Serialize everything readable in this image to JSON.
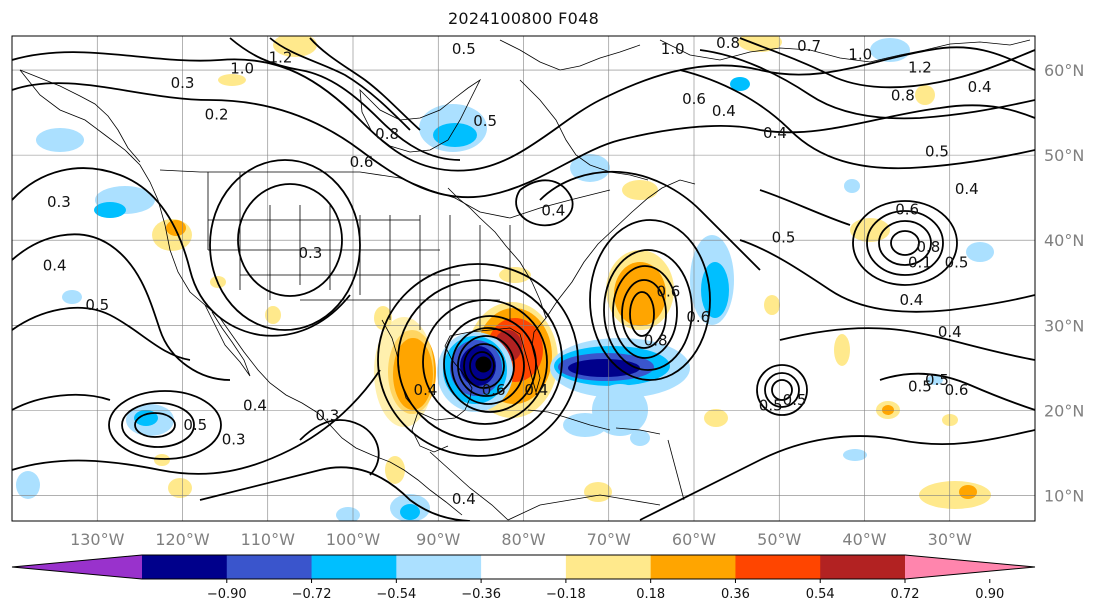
{
  "title": "2024100800 F048",
  "map": {
    "lon_range": [
      -140,
      -20
    ],
    "lat_range": [
      7,
      64
    ],
    "lon_ticks": [
      {
        "lon": -130,
        "label": "130°W"
      },
      {
        "lon": -120,
        "label": "120°W"
      },
      {
        "lon": -110,
        "label": "110°W"
      },
      {
        "lon": -100,
        "label": "100°W"
      },
      {
        "lon": -90,
        "label": "90°W"
      },
      {
        "lon": -80,
        "label": "80°W"
      },
      {
        "lon": -70,
        "label": "70°W"
      },
      {
        "lon": -60,
        "label": "60°W"
      },
      {
        "lon": -50,
        "label": "50°W"
      },
      {
        "lon": -40,
        "label": "40°W"
      },
      {
        "lon": -30,
        "label": "30°W"
      }
    ],
    "lat_ticks": [
      {
        "lat": 60,
        "label": "60°N"
      },
      {
        "lat": 50,
        "label": "50°N"
      },
      {
        "lat": 40,
        "label": "40°N"
      },
      {
        "lat": 30,
        "label": "30°N"
      },
      {
        "lat": 20,
        "label": "20°N"
      },
      {
        "lat": 10,
        "label": "10°N"
      }
    ],
    "contour_labels": [
      {
        "lon": -120,
        "lat": 58.5,
        "text": "0.3"
      },
      {
        "lon": -116,
        "lat": 54.8,
        "text": "0.2"
      },
      {
        "lon": -134.5,
        "lat": 44.5,
        "text": "0.3"
      },
      {
        "lon": -135,
        "lat": 37,
        "text": "0.4"
      },
      {
        "lon": -130,
        "lat": 32.4,
        "text": "0.5"
      },
      {
        "lon": -105,
        "lat": 38.5,
        "text": "0.3"
      },
      {
        "lon": -113,
        "lat": 60.2,
        "text": "1.0"
      },
      {
        "lon": -108.5,
        "lat": 61.5,
        "text": "1.2"
      },
      {
        "lon": -96,
        "lat": 52.5,
        "text": "0.8"
      },
      {
        "lon": -99,
        "lat": 49.2,
        "text": "0.6"
      },
      {
        "lon": -87,
        "lat": 62.5,
        "text": "0.5"
      },
      {
        "lon": -84.5,
        "lat": 54,
        "text": "0.5"
      },
      {
        "lon": -76.5,
        "lat": 43.5,
        "text": "0.4"
      },
      {
        "lon": -62.5,
        "lat": 62.5,
        "text": "1.0"
      },
      {
        "lon": -60,
        "lat": 56.6,
        "text": "0.6"
      },
      {
        "lon": -56.5,
        "lat": 55.2,
        "text": "0.4"
      },
      {
        "lon": -50.5,
        "lat": 52.6,
        "text": "0.4"
      },
      {
        "lon": -56,
        "lat": 63.2,
        "text": "0.8"
      },
      {
        "lon": -46.5,
        "lat": 62.8,
        "text": "0.7"
      },
      {
        "lon": -40.5,
        "lat": 61.8,
        "text": "1.0"
      },
      {
        "lon": -33.5,
        "lat": 60.3,
        "text": "1.2"
      },
      {
        "lon": -35.5,
        "lat": 57,
        "text": "0.8"
      },
      {
        "lon": -26.5,
        "lat": 58,
        "text": "0.4"
      },
      {
        "lon": -23,
        "lat": 65,
        "text": ""
      },
      {
        "lon": -31.5,
        "lat": 50.4,
        "text": "0.5"
      },
      {
        "lon": -28,
        "lat": 46,
        "text": "0.4"
      },
      {
        "lon": -35,
        "lat": 43.6,
        "text": "0.6"
      },
      {
        "lon": -49.5,
        "lat": 40.3,
        "text": "0.5"
      },
      {
        "lon": -32.5,
        "lat": 39.2,
        "text": "0.8"
      },
      {
        "lon": -33.5,
        "lat": 37.4,
        "text": "0.1"
      },
      {
        "lon": -29.2,
        "lat": 37.4,
        "text": "0.5"
      },
      {
        "lon": -34.5,
        "lat": 33,
        "text": "0.4"
      },
      {
        "lon": -30,
        "lat": 29.2,
        "text": "0.4"
      },
      {
        "lon": -63,
        "lat": 34,
        "text": "0.6"
      },
      {
        "lon": -59.5,
        "lat": 31,
        "text": "0.6"
      },
      {
        "lon": -64.5,
        "lat": 28.2,
        "text": "0.8"
      },
      {
        "lon": -51,
        "lat": 20.6,
        "text": "0.5"
      },
      {
        "lon": -48.2,
        "lat": 21.2,
        "text": "0.5"
      },
      {
        "lon": -33.5,
        "lat": 22.8,
        "text": "0.5"
      },
      {
        "lon": -31.5,
        "lat": 23.6,
        "text": "0.5"
      },
      {
        "lon": -29.2,
        "lat": 22.4,
        "text": "0.6"
      },
      {
        "lon": -111.5,
        "lat": 20.6,
        "text": "0.4"
      },
      {
        "lon": -118.5,
        "lat": 18.3,
        "text": "0.5"
      },
      {
        "lon": -114,
        "lat": 16.6,
        "text": "0.3"
      },
      {
        "lon": -103,
        "lat": 19.4,
        "text": "0.3"
      },
      {
        "lon": -91.5,
        "lat": 22.4,
        "text": "0.4"
      },
      {
        "lon": -83.5,
        "lat": 22.4,
        "text": "0.6"
      },
      {
        "lon": -78.5,
        "lat": 22.4,
        "text": "0.4"
      },
      {
        "lon": -87,
        "lat": 9.6,
        "text": "0.4"
      }
    ],
    "hurricane_center": {
      "lon": -84.7,
      "lat": 25.4
    }
  },
  "colorbar": {
    "colors": [
      "#9932cc",
      "#00008b",
      "#3a55cc",
      "#00bfff",
      "#abe0ff",
      "#ffffff",
      "#ffe98c",
      "#ffa500",
      "#ff4500",
      "#b22222",
      "#ff85ad"
    ],
    "ticks": [
      "−0.90",
      "−0.72",
      "−0.54",
      "−0.36",
      "−0.18",
      "0.18",
      "0.36",
      "0.54",
      "0.72",
      "0.90"
    ]
  },
  "colors": {
    "frame": "#000000",
    "grid": "#808080",
    "contour": "#000000",
    "coast": "#000000"
  }
}
